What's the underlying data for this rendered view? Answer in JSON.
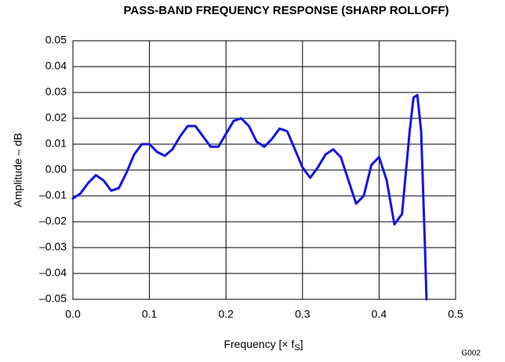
{
  "chart_data": {
    "type": "line",
    "title": "PASS-BAND FREQUENCY RESPONSE (SHARP ROLLOFF)",
    "y_label": "Amplitude – dB",
    "x_label": "Frequency [× f",
    "x_label_sub": "S",
    "x_label_end": "]",
    "annotation": "G002",
    "xlim": [
      0,
      0.5
    ],
    "ylim": [
      -0.05,
      0.05
    ],
    "xticks": [
      {
        "value": 0,
        "label": "0.0"
      },
      0.1,
      0.2,
      0.3,
      0.4,
      0.5
    ],
    "yticks": [
      {
        "value": -0.05,
        "label": "–0.05"
      },
      {
        "value": -0.04,
        "label": "–0.04"
      },
      {
        "value": -0.03,
        "label": "–0.03"
      },
      {
        "value": -0.02,
        "label": "–0.02"
      },
      {
        "value": -0.01,
        "label": "–0.01"
      },
      {
        "value": 0,
        "label": "0.00"
      },
      0.01,
      0.02,
      0.03,
      0.04,
      0.05
    ],
    "grid": true,
    "series": [
      {
        "color": "#1414e6",
        "x": [
          0,
          0.01,
          0.02,
          0.03,
          0.04,
          0.05,
          0.06,
          0.07,
          0.08,
          0.09,
          0.1,
          0.11,
          0.12,
          0.13,
          0.14,
          0.15,
          0.16,
          0.17,
          0.18,
          0.19,
          0.2,
          0.21,
          0.22,
          0.23,
          0.24,
          0.25,
          0.26,
          0.27,
          0.28,
          0.29,
          0.3,
          0.31,
          0.32,
          0.33,
          0.34,
          0.35,
          0.36,
          0.37,
          0.38,
          0.39,
          0.4,
          0.41,
          0.42,
          0.43,
          0.44,
          0.445,
          0.45,
          0.455,
          0.46,
          0.462
        ],
        "values": [
          -0.011,
          -0.009,
          -0.005,
          -0.002,
          -0.004,
          -0.008,
          -0.007,
          -0.001,
          0.006,
          0.01,
          0.01,
          0.007,
          0.0055,
          0.008,
          0.013,
          0.017,
          0.017,
          0.013,
          0.009,
          0.009,
          0.014,
          0.019,
          0.02,
          0.017,
          0.011,
          0.009,
          0.012,
          0.016,
          0.015,
          0.008,
          0.001,
          -0.003,
          0.001,
          0.006,
          0.008,
          0.005,
          -0.004,
          -0.013,
          -0.01,
          0.002,
          0.005,
          -0.004,
          -0.021,
          -0.017,
          0.015,
          0.028,
          0.029,
          0.015,
          -0.03,
          -0.05
        ]
      }
    ]
  }
}
